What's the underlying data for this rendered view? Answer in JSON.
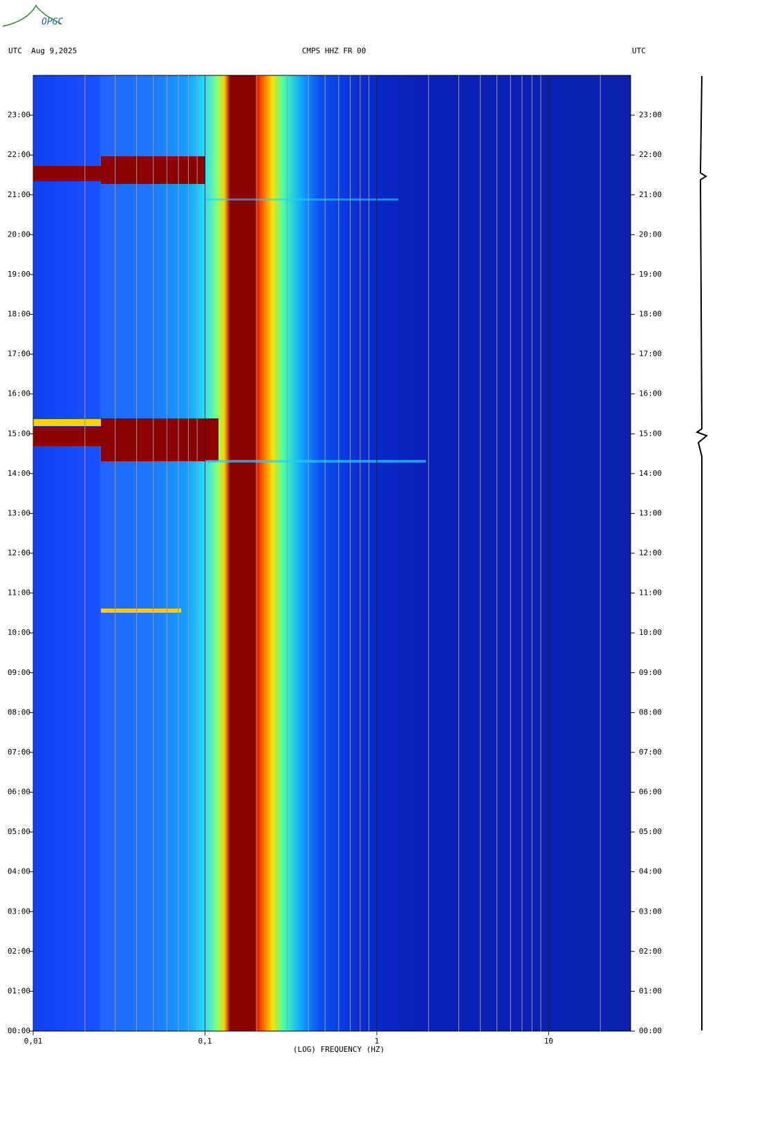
{
  "chart_data": {
    "type": "spectrogram",
    "logo": "OPGC",
    "title_left": "UTC  Aug 9,2025",
    "title": "CMPS HHZ FR 00",
    "title_right": "UTC",
    "x_label": "(LOG) FREQUENCY (HZ)",
    "x_log": true,
    "xlim": [
      0.01,
      30
    ],
    "xticks": [
      {
        "value": 0.01,
        "label": "0,01"
      },
      {
        "value": 0.1,
        "label": "0,1"
      },
      1,
      10
    ],
    "x_minor_gridlines": [
      0.02,
      0.03,
      0.04,
      0.05,
      0.06,
      0.07,
      0.08,
      0.09,
      0.2,
      0.3,
      0.4,
      0.5,
      0.6,
      0.7,
      0.8,
      0.9,
      2,
      3,
      4,
      5,
      6,
      7,
      8,
      9,
      20
    ],
    "ylim": [
      0,
      24
    ],
    "yticks": [
      {
        "value": 0,
        "label": "00:00"
      },
      {
        "value": 1,
        "label": "01:00"
      },
      {
        "value": 2,
        "label": "02:00"
      },
      {
        "value": 3,
        "label": "03:00"
      },
      {
        "value": 4,
        "label": "04:00"
      },
      {
        "value": 5,
        "label": "05:00"
      },
      {
        "value": 6,
        "label": "06:00"
      },
      {
        "value": 7,
        "label": "07:00"
      },
      {
        "value": 8,
        "label": "08:00"
      },
      {
        "value": 9,
        "label": "09:00"
      },
      {
        "value": 10,
        "label": "10:00"
      },
      {
        "value": 11,
        "label": "11:00"
      },
      {
        "value": 12,
        "label": "12:00"
      },
      {
        "value": 13,
        "label": "13:00"
      },
      {
        "value": 14,
        "label": "14:00"
      },
      {
        "value": 15,
        "label": "15:00"
      },
      {
        "value": 16,
        "label": "16:00"
      },
      {
        "value": 17,
        "label": "17:00"
      },
      {
        "value": 18,
        "label": "18:00"
      },
      {
        "value": 19,
        "label": "19:00"
      },
      {
        "value": 20,
        "label": "20:00"
      },
      {
        "value": 21,
        "label": "21:00"
      },
      {
        "value": 22,
        "label": "22:00"
      },
      {
        "value": 23,
        "label": "23:00"
      }
    ]
  }
}
